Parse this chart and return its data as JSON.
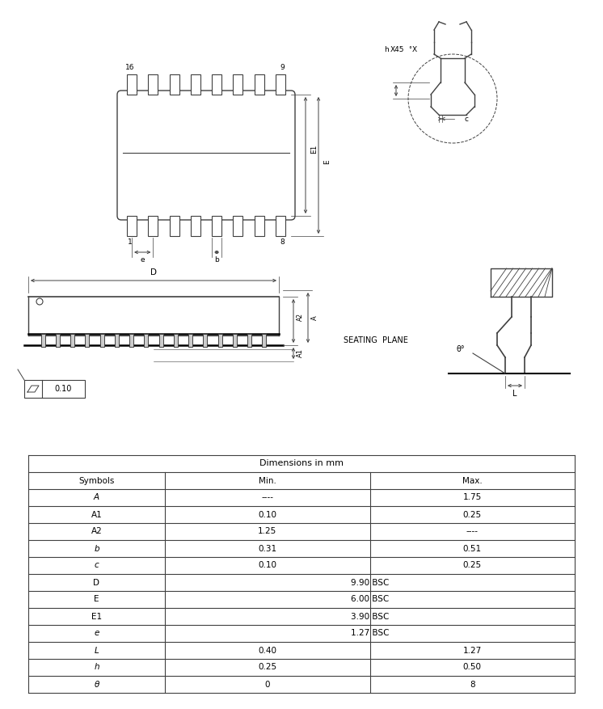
{
  "bg_color": "#ffffff",
  "line_color": "#404040",
  "table_title": "Dimensions in mm",
  "table_headers": [
    "Symbols",
    "Min.",
    "Max."
  ],
  "table_rows": [
    [
      "A",
      "----",
      "1.75"
    ],
    [
      "A1",
      "0.10",
      "0.25"
    ],
    [
      "A2",
      "1.25",
      "----"
    ],
    [
      "b",
      "0.31",
      "0.51"
    ],
    [
      "c",
      "0.10",
      "0.25"
    ],
    [
      "D",
      "9.90 BSC",
      ""
    ],
    [
      "E",
      "6.00 BSC",
      ""
    ],
    [
      "E1",
      "3.90 BSC",
      ""
    ],
    [
      "e",
      "1.27 BSC",
      ""
    ],
    [
      "L",
      "0.40",
      "1.27"
    ],
    [
      "h",
      "0.25",
      "0.50"
    ],
    [
      "θ",
      "0",
      "8"
    ]
  ],
  "flatness_val": "0.10"
}
